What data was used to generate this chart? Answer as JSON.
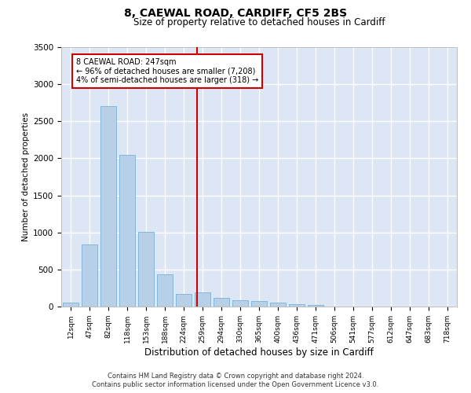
{
  "title": "8, CAEWAL ROAD, CARDIFF, CF5 2BS",
  "subtitle": "Size of property relative to detached houses in Cardiff",
  "xlabel": "Distribution of detached houses by size in Cardiff",
  "ylabel": "Number of detached properties",
  "bar_color": "#b8cfe8",
  "bar_edge_color": "#7aafd4",
  "background_color": "#dce6f5",
  "grid_color": "#ffffff",
  "categories": [
    "12sqm",
    "47sqm",
    "82sqm",
    "118sqm",
    "153sqm",
    "188sqm",
    "224sqm",
    "259sqm",
    "294sqm",
    "330sqm",
    "365sqm",
    "400sqm",
    "436sqm",
    "471sqm",
    "506sqm",
    "541sqm",
    "577sqm",
    "612sqm",
    "647sqm",
    "683sqm",
    "718sqm"
  ],
  "values": [
    50,
    840,
    2700,
    2050,
    1010,
    430,
    175,
    190,
    120,
    90,
    70,
    50,
    30,
    20,
    0,
    0,
    0,
    0,
    0,
    0,
    0
  ],
  "vline_x_index": 6.7,
  "annotation_text": "8 CAEWAL ROAD: 247sqm\n← 96% of detached houses are smaller (7,208)\n4% of semi-detached houses are larger (318) →",
  "vline_color": "#cc0000",
  "annotation_box_edge_color": "#cc0000",
  "annotation_box_face_color": "#ffffff",
  "ylim": [
    0,
    3500
  ],
  "yticks": [
    0,
    500,
    1000,
    1500,
    2000,
    2500,
    3000,
    3500
  ],
  "footer_line1": "Contains HM Land Registry data © Crown copyright and database right 2024.",
  "footer_line2": "Contains public sector information licensed under the Open Government Licence v3.0."
}
